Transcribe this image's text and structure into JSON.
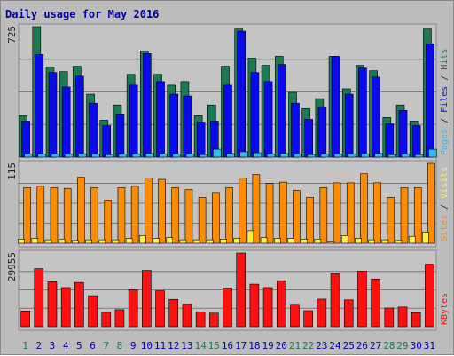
{
  "title": "Daily usage for May 2016",
  "colors": {
    "background": "#bcbcbc",
    "panel": "#c4c4c4",
    "hits": "#1a7a52",
    "files": "#0a0aee",
    "pages": "#33bbee",
    "visits": "#ff8c00",
    "sites": "#ffee44",
    "kbytes": "#ff1010",
    "title": "#0000aa",
    "day_weekday": "#0000aa",
    "day_weekend": "#1a7a52"
  },
  "chart_data": [
    {
      "type": "bar",
      "panel": "top",
      "ymax_label": "725",
      "ymax": 725,
      "legend": [
        {
          "text": "Pages",
          "color": "#33bbee"
        },
        {
          "text": " / ",
          "color": "#222222"
        },
        {
          "text": "Files",
          "color": "#0a0aee"
        },
        {
          "text": " / ",
          "color": "#222222"
        },
        {
          "text": "Hits",
          "color": "#1a7a52"
        }
      ],
      "categories": [
        "1",
        "2",
        "3",
        "4",
        "5",
        "6",
        "7",
        "8",
        "9",
        "10",
        "11",
        "12",
        "13",
        "14",
        "15",
        "16",
        "17",
        "18",
        "19",
        "20",
        "21",
        "22",
        "23",
        "24",
        "25",
        "26",
        "27",
        "28",
        "29",
        "30",
        "31"
      ],
      "series": [
        {
          "name": "Hits",
          "values": [
            230,
            725,
            500,
            475,
            505,
            350,
            205,
            290,
            460,
            590,
            460,
            400,
            420,
            230,
            290,
            505,
            712,
            550,
            510,
            560,
            360,
            270,
            325,
            560,
            380,
            510,
            480,
            220,
            290,
            200,
            712
          ]
        },
        {
          "name": "Files",
          "values": [
            200,
            570,
            470,
            390,
            450,
            300,
            175,
            240,
            400,
            575,
            420,
            350,
            340,
            195,
            200,
            400,
            700,
            470,
            420,
            515,
            300,
            210,
            280,
            560,
            350,
            495,
            445,
            185,
            260,
            175,
            630
          ]
        },
        {
          "name": "Pages",
          "values": [
            18,
            18,
            16,
            16,
            18,
            16,
            14,
            16,
            18,
            20,
            18,
            16,
            16,
            14,
            44,
            20,
            30,
            24,
            18,
            20,
            16,
            14,
            16,
            18,
            16,
            18,
            20,
            14,
            16,
            14,
            44
          ]
        }
      ]
    },
    {
      "type": "bar",
      "panel": "middle",
      "ymax_label": "115",
      "ymax": 115,
      "legend": [
        {
          "text": "Sites",
          "color": "#ff8c00"
        },
        {
          "text": " / ",
          "color": "#222222"
        },
        {
          "text": "Visits",
          "color": "#ffee44"
        }
      ],
      "categories": [
        "1",
        "2",
        "3",
        "4",
        "5",
        "6",
        "7",
        "8",
        "9",
        "10",
        "11",
        "12",
        "13",
        "14",
        "15",
        "16",
        "17",
        "18",
        "19",
        "20",
        "21",
        "22",
        "23",
        "24",
        "25",
        "26",
        "27",
        "28",
        "29",
        "30",
        "31"
      ],
      "series": [
        {
          "name": "Visits",
          "values": [
            80,
            82,
            80,
            79,
            95,
            80,
            62,
            80,
            82,
            94,
            92,
            80,
            77,
            66,
            73,
            80,
            94,
            99,
            86,
            88,
            76,
            66,
            80,
            87,
            87,
            100,
            87,
            66,
            80,
            80,
            115
          ]
        },
        {
          "name": "Sites",
          "values": [
            6,
            7,
            5,
            6,
            4,
            5,
            5,
            5,
            7,
            11,
            7,
            8,
            5,
            5,
            5,
            6,
            7,
            18,
            8,
            7,
            7,
            6,
            6,
            2,
            11,
            7,
            5,
            5,
            4,
            10,
            16
          ]
        }
      ]
    },
    {
      "type": "bar",
      "panel": "bottom",
      "ymax_label": "29955",
      "ymax": 29955,
      "legend": [
        {
          "text": "KBytes",
          "color": "#ff1010"
        }
      ],
      "categories": [
        "1",
        "2",
        "3",
        "4",
        "5",
        "6",
        "7",
        "8",
        "9",
        "10",
        "11",
        "12",
        "13",
        "14",
        "15",
        "16",
        "17",
        "18",
        "19",
        "20",
        "21",
        "22",
        "23",
        "24",
        "25",
        "26",
        "27",
        "28",
        "29",
        "30",
        "31"
      ],
      "series": [
        {
          "name": "KBytes",
          "values": [
            6400,
            23600,
            18300,
            15900,
            18000,
            12600,
            5800,
            6900,
            15000,
            22900,
            14600,
            11100,
            9200,
            5900,
            5500,
            15700,
            29955,
            17300,
            15900,
            18700,
            9100,
            6500,
            11200,
            21500,
            10900,
            22600,
            19400,
            7600,
            8000,
            5700,
            25400
          ]
        }
      ]
    }
  ]
}
